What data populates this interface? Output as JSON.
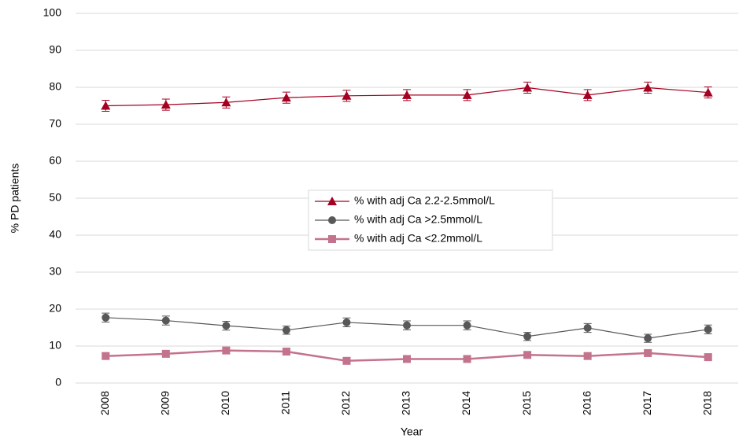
{
  "chart_data": {
    "type": "line",
    "x_label": "Year",
    "y_label": "% PD patients",
    "categories": [
      "2008",
      "2009",
      "2010",
      "2011",
      "2012",
      "2013",
      "2014",
      "2015",
      "2016",
      "2017",
      "2018"
    ],
    "series": [
      {
        "name": "% with adj Ca 2.2-2.5mmol/L",
        "color": "#a50021",
        "marker": "triangle",
        "values": [
          75.0,
          75.3,
          75.9,
          77.2,
          77.7,
          77.9,
          77.9,
          79.9,
          77.9,
          79.9,
          78.6
        ],
        "errors": [
          1.5,
          1.5,
          1.5,
          1.5,
          1.5,
          1.5,
          1.5,
          1.5,
          1.5,
          1.5,
          1.5
        ]
      },
      {
        "name": "% with adj Ca >2.5mmol/L",
        "color": "#58585a",
        "marker": "circle",
        "values": [
          17.7,
          16.9,
          15.5,
          14.3,
          16.4,
          15.6,
          15.6,
          12.6,
          14.9,
          12.1,
          14.5
        ],
        "errors": [
          1.2,
          1.2,
          1.2,
          1.1,
          1.2,
          1.2,
          1.2,
          1.1,
          1.2,
          1.1,
          1.2
        ]
      },
      {
        "name": "% with adj Ca <2.2mmol/L",
        "color": "#c4738c",
        "marker": "square",
        "values": [
          7.3,
          7.9,
          8.8,
          8.5,
          6.0,
          6.5,
          6.5,
          7.6,
          7.3,
          8.1,
          7.0
        ],
        "errors": [
          0.8,
          0.8,
          0.8,
          0.8,
          0.7,
          0.7,
          0.7,
          0.8,
          0.8,
          0.8,
          0.8
        ]
      }
    ],
    "ylim": [
      0,
      100
    ],
    "yticks": [
      0,
      10,
      20,
      30,
      40,
      50,
      60,
      70,
      80,
      90,
      100
    ],
    "grid": true,
    "legend": "center"
  }
}
